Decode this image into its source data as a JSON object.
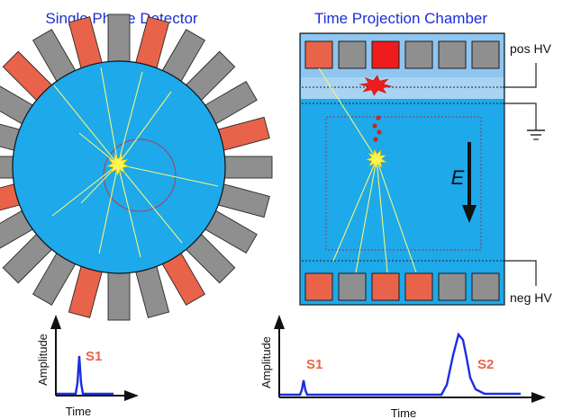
{
  "titles": {
    "left": "Single Phase Detector",
    "right": "Time Projection Chamber"
  },
  "tpc": {
    "top_electrode_label": "pos HV",
    "bottom_electrode_label": "neg HV",
    "field_label": "E",
    "top_pmt_colors": [
      "orange",
      "gray",
      "red",
      "gray",
      "gray",
      "gray"
    ],
    "bottom_pmt_colors": [
      "orange",
      "gray",
      "orange",
      "orange",
      "gray",
      "gray"
    ]
  },
  "plots": {
    "left": {
      "xlabel": "Time",
      "ylabel": "Amplitude",
      "peak_label": "S1"
    },
    "right": {
      "xlabel": "Time",
      "ylabel": "Amplitude",
      "peak1_label": "S1",
      "peak2_label": "S2"
    }
  },
  "colors": {
    "title_blue": "#1a2fd6",
    "liquid_blue": "#1da9ea",
    "gas_blue": "#8fc5ef",
    "pmt_orange": "#e8634a",
    "pmt_red": "#ee1c1c",
    "pmt_gray": "#8f8f8f",
    "trace_blue": "#1b2ee0",
    "ray_yellow": "#f5f57a",
    "flash_yellow": "#fff34f",
    "droplet_red": "#c62828"
  },
  "icons": [
    "scintillation-flash-icon",
    "gas-flash-icon",
    "ground-symbol-icon",
    "field-arrow-icon"
  ]
}
